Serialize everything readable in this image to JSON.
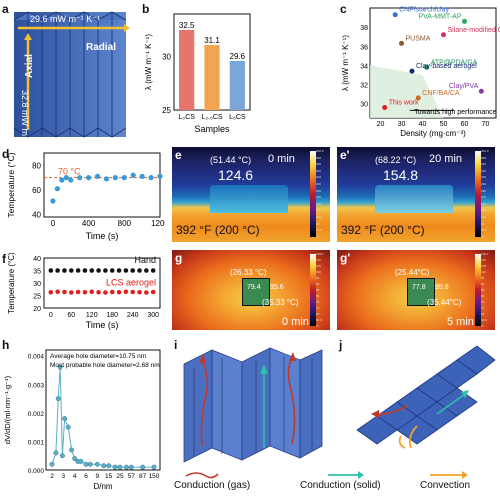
{
  "labels": {
    "a": "a",
    "b": "b",
    "c": "c",
    "d": "d",
    "e": "e",
    "e2": "e'",
    "f": "f",
    "g": "g",
    "g2": "g'",
    "h": "h",
    "i": "i",
    "j": "j"
  },
  "a": {
    "radial_val": "29.6 mW m⁻¹ K⁻¹",
    "radial": "Radial",
    "axial_val": "32.8 mW m⁻¹ K⁻¹",
    "axial": "Axial"
  },
  "b_chart": {
    "type": "bar",
    "categories": [
      "L₀CS",
      "L₂.₅CS",
      "L₅CS"
    ],
    "values": [
      32.5,
      31.1,
      29.6
    ],
    "value_labels": [
      "32.5",
      "31.1",
      "29.6"
    ],
    "colors": [
      "#e8756b",
      "#f2a451",
      "#7aa6d8"
    ],
    "ylim": [
      25,
      34
    ],
    "yticks": [
      "25",
      "30"
    ],
    "xlabel": "Samples",
    "ylabel": "λ (mW m⁻¹ K⁻¹)"
  },
  "c_chart": {
    "type": "scatter",
    "xlabel": "Density (mg·cm⁻³)",
    "ylabel": "λ (mW m⁻¹ K⁻¹)",
    "xticks": [
      "20",
      "30",
      "40",
      "50",
      "60",
      "70"
    ],
    "yticks": [
      "30",
      "32",
      "34",
      "36",
      "38"
    ],
    "points": [
      {
        "name": "CNF/starch/clay",
        "x": 27,
        "y": 39.3,
        "color": "#3a6fd8",
        "shape": "^"
      },
      {
        "name": "PVA-MMT-AP",
        "x": 60,
        "y": 38.6,
        "color": "#2aa55f",
        "shape": "o"
      },
      {
        "name": "Silane-modified CNF",
        "x": 50,
        "y": 37.2,
        "color": "#d2335c",
        "shape": "*"
      },
      {
        "name": "PUSMA",
        "x": 30,
        "y": 36.3,
        "color": "#8a5b2f",
        "shape": "o"
      },
      {
        "name": "ATP@PDA/GA",
        "x": 42,
        "y": 33.8,
        "color": "#1e8f5a",
        "shape": "o"
      },
      {
        "name": "Clay-based aerogel",
        "x": 35,
        "y": 33.4,
        "color": "#162a6e",
        "shape": "d"
      },
      {
        "name": "CNF/BA/CA",
        "x": 38,
        "y": 30.6,
        "color": "#d06a2a",
        "shape": "x"
      },
      {
        "name": "Clay/PVA",
        "x": 68,
        "y": 31.3,
        "color": "#8a3aa5",
        "shape": "v"
      },
      {
        "name": "This work",
        "x": 22,
        "y": 29.6,
        "color": "#d82020",
        "shape": "*"
      }
    ],
    "annotation": "Towards high performance"
  },
  "d_chart": {
    "type": "scatter",
    "xlabel": "Time (s)",
    "ylabel": "Temperature (°C)",
    "yticks": [
      "40",
      "60",
      "80"
    ],
    "xticks": [
      "0",
      "400",
      "800",
      "1200"
    ],
    "ref_label": "70 °C",
    "ref": 70,
    "x": [
      0,
      50,
      100,
      150,
      200,
      300,
      400,
      500,
      600,
      700,
      800,
      900,
      1000,
      1100,
      1200
    ],
    "y": [
      51,
      61,
      68,
      70,
      68,
      70,
      70,
      71,
      69,
      70,
      70,
      72,
      71,
      70,
      71
    ]
  },
  "e": {
    "time": "0 min",
    "temp_label": "(51.44 °C)",
    "center": "124.6",
    "base": "392 °F  (200 °C)",
    "scale": [
      "302.0",
      "280",
      "260",
      "240",
      "220",
      "200",
      "180",
      "160",
      "140",
      "120",
      "100",
      "80",
      "60.0",
      "°F"
    ]
  },
  "e2": {
    "time": "20 min",
    "temp_label": "(68.22 °C)",
    "center": "154.8",
    "base": "392 °F  (200 °C)",
    "scale": [
      "302.0",
      "280",
      "260",
      "240",
      "220",
      "200",
      "180",
      "160",
      "140",
      "120",
      "100",
      "80",
      "60.0",
      "°F"
    ]
  },
  "f_chart": {
    "type": "scatter",
    "xlabel": "Time (s)",
    "ylabel": "Temperature (°C)",
    "yticks": [
      "20",
      "25",
      "30",
      "35",
      "40"
    ],
    "xticks": [
      "0",
      "60",
      "120",
      "180",
      "240",
      "300"
    ],
    "series": [
      {
        "name": "Hand",
        "color": "#111111",
        "x": [
          0,
          20,
          40,
          60,
          80,
          100,
          120,
          140,
          160,
          180,
          200,
          220,
          240,
          260,
          280,
          300
        ],
        "y": [
          35,
          35,
          35,
          35,
          35,
          35,
          35,
          35,
          35,
          35,
          35,
          35,
          35,
          35,
          35,
          35
        ]
      },
      {
        "name": "LCS aerogel",
        "color": "#e02020",
        "x": [
          0,
          20,
          40,
          60,
          80,
          100,
          120,
          140,
          160,
          180,
          200,
          220,
          240,
          260,
          280,
          300
        ],
        "y": [
          26.3,
          26.5,
          26.4,
          26.2,
          26.4,
          26.3,
          26.5,
          26.3,
          26.2,
          26.4,
          26.3,
          26.5,
          26.4,
          26.3,
          26.2,
          26.4
        ]
      }
    ]
  },
  "g": {
    "time": "0 min",
    "t1": "(26.33 °C)",
    "v1": "79.4",
    "v2": "95.6",
    "t2": "(35.33 °C)",
    "scale": [
      "118.0",
      "110",
      "105",
      "100",
      "95",
      "90",
      "85",
      "80",
      "75",
      "70",
      "65",
      "60.0",
      "°F"
    ]
  },
  "g2": {
    "time": "5 min",
    "t1": "(25.44°C)",
    "v1": "77.8",
    "v2": "95.8",
    "t2": "(35.44°C)",
    "scale": [
      "118.0",
      "110",
      "105",
      "100",
      "95",
      "90",
      "85",
      "80",
      "75",
      "70",
      "65",
      "60.0",
      "°F"
    ]
  },
  "h_chart": {
    "type": "line",
    "xlabel": "D/nm",
    "ylabel": "dV/dD/(ml·nm⁻¹·g⁻¹)",
    "yticks": [
      "0.000",
      "0.001",
      "0.002",
      "0.003",
      "0.004"
    ],
    "xticks": [
      "2",
      "3",
      "4",
      "6",
      "9",
      "15",
      "25",
      "57",
      "87",
      "150"
    ],
    "note1": "Average hole diameter=10.75 nm",
    "note2": "Most probable hole diameter=2.68 nm",
    "x": [
      2.0,
      2.3,
      2.5,
      2.68,
      2.9,
      3.1,
      3.4,
      3.7,
      4.0,
      4.5,
      5,
      6,
      7,
      9,
      12,
      15,
      20,
      25,
      40,
      57,
      87,
      150
    ],
    "y": [
      0.0002,
      0.0006,
      0.0025,
      0.0036,
      0.0005,
      0.0018,
      0.0015,
      0.0007,
      0.0004,
      0.0003,
      0.0003,
      0.0002,
      0.0002,
      0.0002,
      0.00015,
      0.00015,
      0.0001,
      0.0001,
      0.0001,
      0.0001,
      0.0001,
      0.0001
    ]
  },
  "legend_bottom": {
    "gas": "Conduction (gas)",
    "solid": "Conduction (solid)",
    "conv": "Convection"
  }
}
